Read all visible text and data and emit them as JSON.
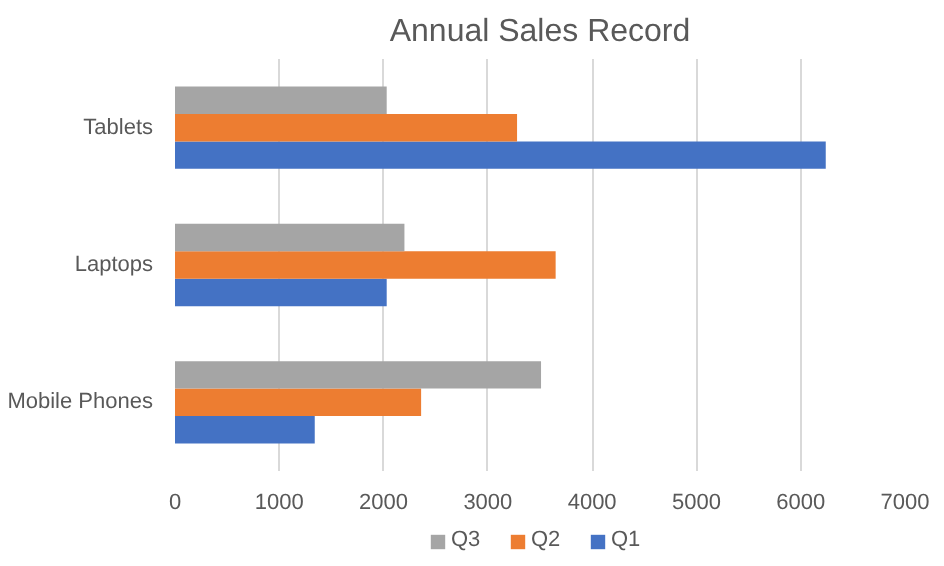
{
  "chart_data": {
    "type": "bar",
    "orientation": "horizontal",
    "title": "Annual Sales Record",
    "categories": [
      "Tablets",
      "Laptops",
      "Mobile Phones"
    ],
    "series": [
      {
        "name": "Q1",
        "color": "#4472c4",
        "values": [
          6240,
          2030,
          1340
        ]
      },
      {
        "name": "Q2",
        "color": "#ed7d31",
        "values": [
          3280,
          3650,
          2360
        ]
      },
      {
        "name": "Q3",
        "color": "#a5a5a5",
        "values": [
          2030,
          2200,
          3510
        ]
      }
    ],
    "xlim": [
      0,
      7000
    ],
    "xticks": [
      0,
      1000,
      2000,
      3000,
      4000,
      5000,
      6000,
      7000
    ],
    "grid": "x",
    "legend": "bottom"
  }
}
